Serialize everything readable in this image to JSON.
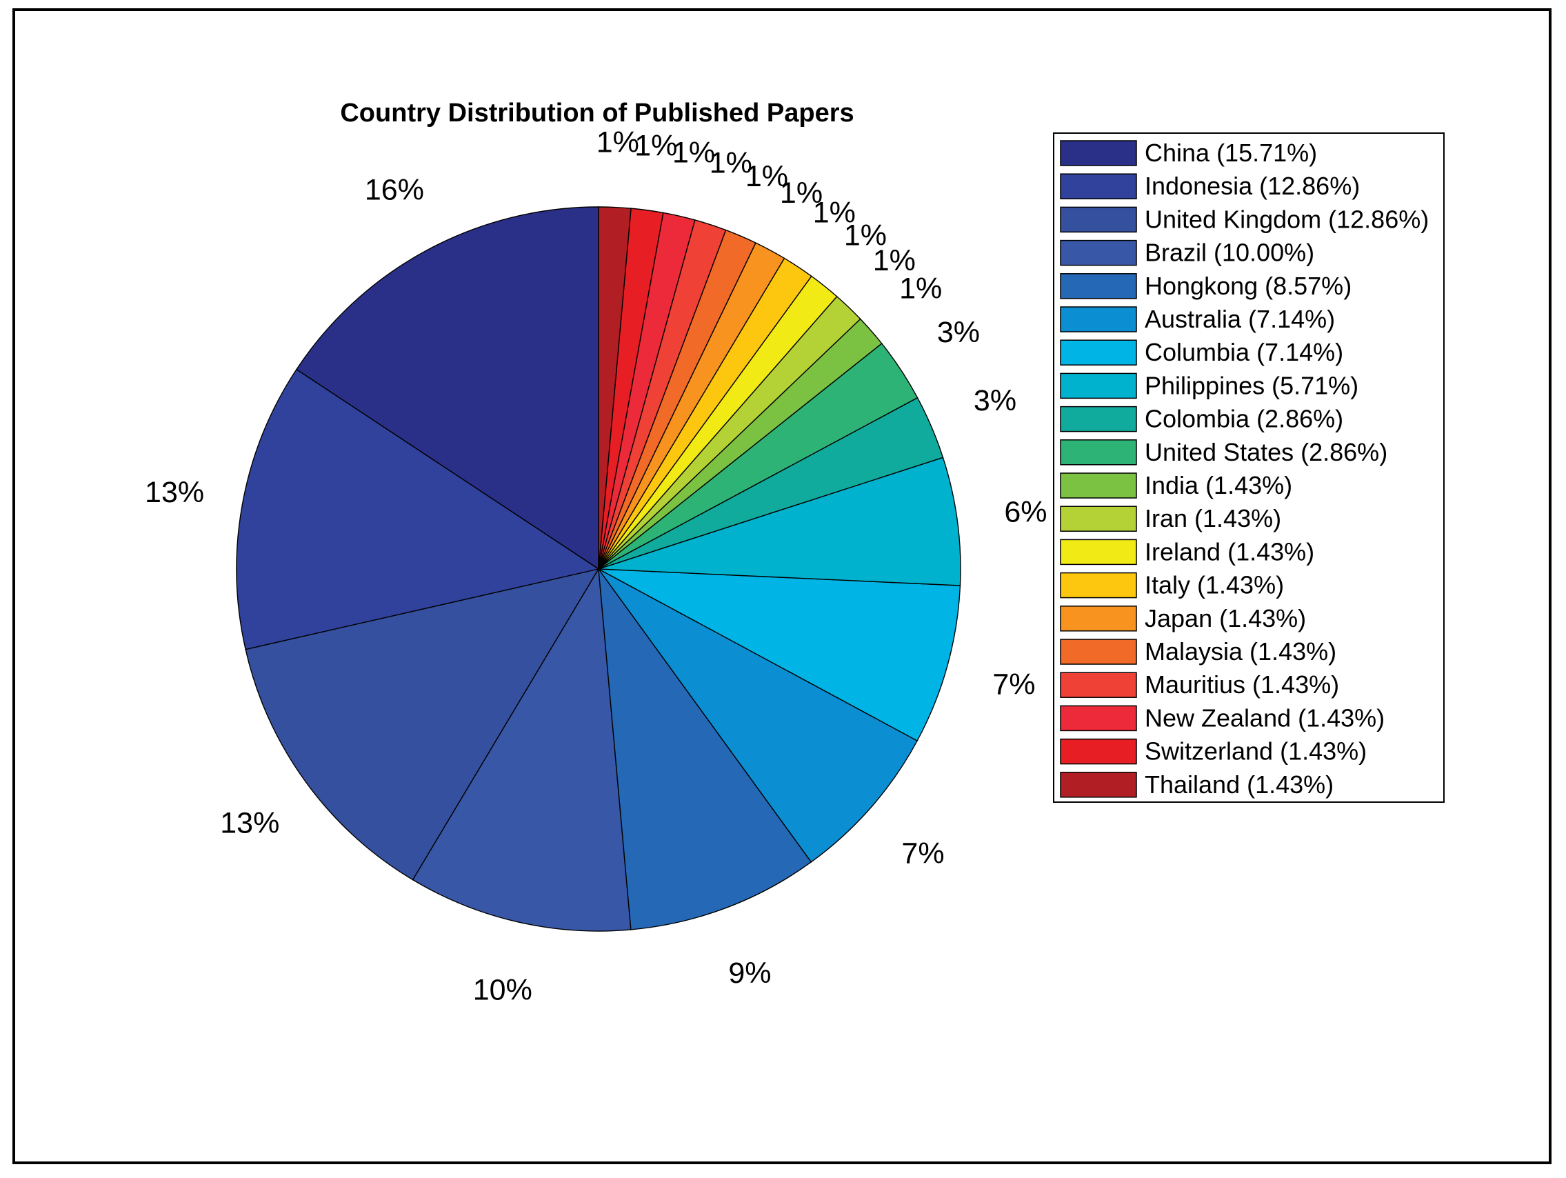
{
  "chart_data": {
    "type": "pie",
    "title": "Country Distribution of Published Papers",
    "slices": [
      {
        "label": "China",
        "legend": "China (15.71%)",
        "value": 15.71,
        "pct_label": "16%",
        "color": "#2a2f88"
      },
      {
        "label": "Indonesia",
        "legend": "Indonesia (12.86%)",
        "value": 12.86,
        "pct_label": "13%",
        "color": "#30429b"
      },
      {
        "label": "United Kingdom",
        "legend": "United Kingdom (12.86%)",
        "value": 12.86,
        "pct_label": "13%",
        "color": "#3650a0"
      },
      {
        "label": "Brazil",
        "legend": "Brazil (10.00%)",
        "value": 10.0,
        "pct_label": "10%",
        "color": "#3857a6"
      },
      {
        "label": "Hongkong",
        "legend": "Hongkong (8.57%)",
        "value": 8.57,
        "pct_label": "9%",
        "color": "#2468b6"
      },
      {
        "label": "Australia",
        "legend": "Australia (7.14%)",
        "value": 7.14,
        "pct_label": "7%",
        "color": "#0b8fd2"
      },
      {
        "label": "Columbia",
        "legend": "Columbia (7.14%)",
        "value": 7.14,
        "pct_label": "7%",
        "color": "#00b4e6"
      },
      {
        "label": "Philippines",
        "legend": "Philippines (5.71%)",
        "value": 5.71,
        "pct_label": "6%",
        "color": "#00b2cd"
      },
      {
        "label": "Colombia",
        "legend": "Colombia (2.86%)",
        "value": 2.86,
        "pct_label": "3%",
        "color": "#11ab9e"
      },
      {
        "label": "United States",
        "legend": "United States (2.86%)",
        "value": 2.86,
        "pct_label": "3%",
        "color": "#2db375"
      },
      {
        "label": "India",
        "legend": "India (1.43%)",
        "value": 1.43,
        "pct_label": "1%",
        "color": "#7cc242"
      },
      {
        "label": "Iran",
        "legend": "Iran (1.43%)",
        "value": 1.43,
        "pct_label": "1%",
        "color": "#b4d235"
      },
      {
        "label": "Ireland",
        "legend": "Ireland (1.43%)",
        "value": 1.43,
        "pct_label": "1%",
        "color": "#f2ea15"
      },
      {
        "label": "Italy",
        "legend": "Italy (1.43%)",
        "value": 1.43,
        "pct_label": "1%",
        "color": "#fdc70f"
      },
      {
        "label": "Japan",
        "legend": "Japan (1.43%)",
        "value": 1.43,
        "pct_label": "1%",
        "color": "#f7931e"
      },
      {
        "label": "Malaysia",
        "legend": "Malaysia (1.43%)",
        "value": 1.43,
        "pct_label": "1%",
        "color": "#f26a27"
      },
      {
        "label": "Mauritius",
        "legend": "Mauritius (1.43%)",
        "value": 1.43,
        "pct_label": "1%",
        "color": "#ef4136"
      },
      {
        "label": "New Zealand",
        "legend": "New Zealand (1.43%)",
        "value": 1.43,
        "pct_label": "1%",
        "color": "#ed2a3a"
      },
      {
        "label": "Switzerland",
        "legend": "Switzerland (1.43%)",
        "value": 1.43,
        "pct_label": "1%",
        "color": "#e81e25"
      },
      {
        "label": "Thailand",
        "legend": "Thailand (1.43%)",
        "value": 1.43,
        "pct_label": "1%",
        "color": "#b11f24"
      }
    ],
    "direction": "counterclockwise",
    "start": "top",
    "legend_position": "right"
  }
}
